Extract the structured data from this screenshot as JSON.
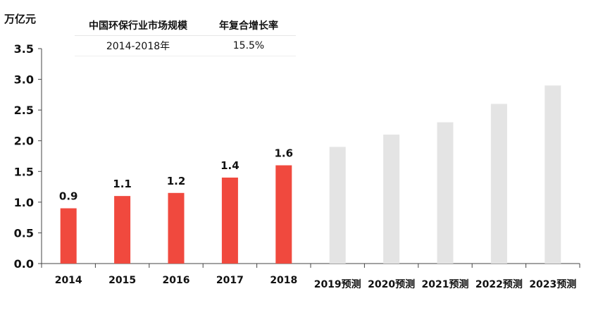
{
  "unit_label": "万亿元",
  "table": {
    "headers": [
      "中国环保行业市场规模",
      "年复合增长率"
    ],
    "row": [
      "2014-2018年",
      "15.5%"
    ]
  },
  "colors": {
    "actual": "#f0493e",
    "forecast": "#e4e4e4",
    "axis": "#444444"
  },
  "chart_data": {
    "type": "bar",
    "title": "",
    "xlabel": "",
    "ylabel": "万亿元",
    "ylim": [
      0,
      3.5
    ],
    "yticks": [
      "0.0",
      "0.5",
      "1.0",
      "1.5",
      "2.0",
      "2.5",
      "3.0",
      "3.5"
    ],
    "categories": [
      "2014",
      "2015",
      "2016",
      "2017",
      "2018",
      "2019预测",
      "2020预测",
      "2021预测",
      "2022预测",
      "2023预测"
    ],
    "values": [
      0.9,
      1.1,
      1.15,
      1.4,
      1.6,
      1.9,
      2.1,
      2.3,
      2.6,
      2.9
    ],
    "data_labels": [
      "0.9",
      "1.1",
      "1.2",
      "1.4",
      "1.6",
      "",
      "",
      "",
      "",
      ""
    ],
    "forecast": [
      false,
      false,
      false,
      false,
      false,
      true,
      true,
      true,
      true,
      true
    ],
    "grid": false,
    "legend": "none"
  }
}
